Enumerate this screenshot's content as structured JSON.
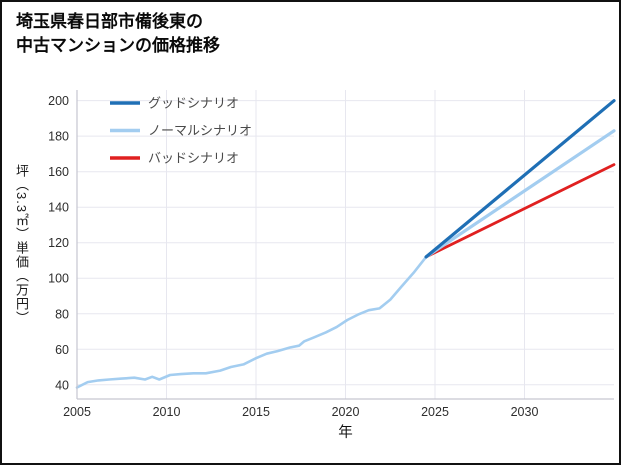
{
  "header": {
    "title_line1": "埼玉県春日部市備後東の",
    "title_line2": "中古マンションの価格推移"
  },
  "chart_data": {
    "type": "line",
    "title": "埼玉県春日部市備後東の中古マンションの価格推移",
    "xlabel": "年",
    "ylabel": "坪（3.3㎡）単価（万円）",
    "xlim": [
      2005,
      2035
    ],
    "ylim": [
      32,
      206
    ],
    "xticks": [
      2005,
      2010,
      2015,
      2020,
      2025,
      2030
    ],
    "yticks": [
      40,
      60,
      80,
      100,
      120,
      140,
      160,
      180,
      200
    ],
    "grid": true,
    "legend_position": "upper-left",
    "colors": {
      "good": "#1f6fb5",
      "normal": "#a3cdf0",
      "bad": "#e02020",
      "grid": "#e7e7ef",
      "axis": "#c6c6d0",
      "tick_text": "#2e2e2e",
      "label_text": "#111111",
      "legend_text": "#4a4a4a"
    },
    "series": [
      {
        "id": "history",
        "name": "",
        "legend": false,
        "legend_index": -1,
        "color_key": "normal",
        "width": 2.6,
        "x": [
          2005,
          2005.6,
          2006.2,
          2006.8,
          2007.5,
          2008.2,
          2008.8,
          2009.2,
          2009.6,
          2010.2,
          2010.8,
          2011.5,
          2012.2,
          2013,
          2013.6,
          2014.3,
          2015,
          2015.6,
          2016.2,
          2016.9,
          2017.4,
          2017.7,
          2018.2,
          2018.9,
          2019.5,
          2020.1,
          2020.7,
          2021.3,
          2021.9,
          2022.5,
          2023.1,
          2023.8,
          2024.5
        ],
        "y": [
          38.5,
          41.5,
          42.5,
          43,
          43.5,
          44,
          43,
          44.5,
          43,
          45.5,
          46,
          46.5,
          46.5,
          48,
          50,
          51.5,
          55,
          57.5,
          59,
          61,
          62,
          64.5,
          66.5,
          69.5,
          72.5,
          76.5,
          79.5,
          82,
          83,
          88,
          95,
          103,
          112
        ]
      },
      {
        "id": "bad",
        "name": "バッドシナリオ",
        "legend": true,
        "legend_index": 2,
        "color_key": "bad",
        "width": 2.8,
        "x": [
          2024.5,
          2035
        ],
        "y": [
          112,
          164
        ]
      },
      {
        "id": "normal",
        "name": "ノーマルシナリオ",
        "legend": true,
        "legend_index": 1,
        "color_key": "normal",
        "width": 3.2,
        "x": [
          2024.5,
          2035
        ],
        "y": [
          112,
          183
        ]
      },
      {
        "id": "good",
        "name": "グッドシナリオ",
        "legend": true,
        "legend_index": 0,
        "color_key": "good",
        "width": 3.2,
        "x": [
          2024.5,
          2035
        ],
        "y": [
          112,
          200
        ]
      }
    ]
  }
}
